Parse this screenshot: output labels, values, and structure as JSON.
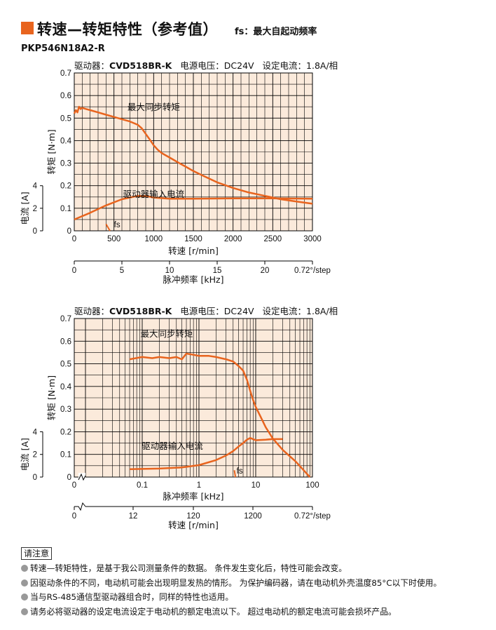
{
  "header": {
    "title": "转速—转矩特性（参考值）",
    "fs_note": "fs：最大自起动频率",
    "model": "PKP546N18A2-R"
  },
  "conditions": {
    "driver_label": "驱动器：",
    "driver": "CVD518BR-K",
    "voltage": "电源电压：DC24V",
    "current_label": "设定电流：",
    "current": "1.8A/相"
  },
  "colors": {
    "accent": "#e8641e",
    "curve": "#e8641e",
    "plot_bg": "#fbeadb",
    "grid": "#000000"
  },
  "chart_data": [
    {
      "type": "line",
      "x_scale": "linear",
      "xlabel": "转速 [r/min]",
      "xlim": [
        0,
        3000
      ],
      "x_ticks": [
        "0",
        "500",
        "1000",
        "1500",
        "2000",
        "2500",
        "3000"
      ],
      "ylabel": "转矩 [N·m]",
      "ylim": [
        0,
        0.7
      ],
      "y_ticks": [
        "0",
        "0.1",
        "0.2",
        "0.3",
        "0.4",
        "0.5",
        "0.6",
        "0.7"
      ],
      "current_label": "电流 [A]",
      "current_ticks": [
        "0",
        "2",
        "4"
      ],
      "secondary_xlabel": "脉冲频率 [kHz]",
      "secondary_ticks": [
        "0",
        "5",
        "10",
        "15",
        "20"
      ],
      "step_label": "0.72°/step",
      "fs_label": "fs",
      "grid": true,
      "series": [
        {
          "name": "最大同步转矩",
          "x": [
            0,
            20,
            40,
            60,
            80,
            100,
            150,
            200,
            300,
            400,
            500,
            600,
            700,
            800,
            850,
            900,
            950,
            1000,
            1050,
            1100,
            1200,
            1300,
            1400,
            1500,
            1600,
            1800,
            2000,
            2200,
            2400,
            2600,
            2800,
            3000
          ],
          "y": [
            0.52,
            0.535,
            0.525,
            0.55,
            0.54,
            0.545,
            0.54,
            0.535,
            0.525,
            0.515,
            0.505,
            0.495,
            0.485,
            0.47,
            0.455,
            0.43,
            0.405,
            0.38,
            0.36,
            0.345,
            0.325,
            0.305,
            0.285,
            0.265,
            0.248,
            0.215,
            0.19,
            0.17,
            0.155,
            0.14,
            0.13,
            0.12
          ]
        },
        {
          "name": "驱动器输入电流",
          "x": [
            0,
            200,
            400,
            600,
            800,
            900,
            1000,
            1200,
            1500,
            2000,
            2500,
            3000
          ],
          "y": [
            1.0,
            1.6,
            2.25,
            2.8,
            3.1,
            3.1,
            2.95,
            2.85,
            2.85,
            2.88,
            2.88,
            2.85
          ],
          "unit": "A"
        },
        {
          "name": "fs",
          "x": [
            400,
            450
          ],
          "y": [
            0.03,
            0.0
          ]
        }
      ]
    },
    {
      "type": "line",
      "x_scale": "log",
      "xlabel": "脉冲频率 [kHz]",
      "xlim": [
        0.01,
        100
      ],
      "x_ticks": [
        "0",
        "0.1",
        "1",
        "10",
        "100"
      ],
      "ylabel": "转矩 [N·m]",
      "ylim": [
        0,
        0.7
      ],
      "y_ticks": [
        "0",
        "0.1",
        "0.2",
        "0.3",
        "0.4",
        "0.5",
        "0.6",
        "0.7"
      ],
      "current_label": "电流 [A]",
      "current_ticks": [
        "0",
        "2",
        "4"
      ],
      "secondary_xlabel": "转速 [r/min]",
      "secondary_ticks": [
        "0",
        "12",
        "120",
        "1200"
      ],
      "step_label": "0.72°/step",
      "fs_label": "fs",
      "grid": true,
      "series": [
        {
          "name": "最大同步转矩",
          "x": [
            0.06,
            0.1,
            0.15,
            0.2,
            0.3,
            0.4,
            0.5,
            0.6,
            0.8,
            1,
            1.5,
            2,
            3,
            4,
            5,
            6,
            7,
            8,
            9,
            10,
            12,
            15,
            20,
            30,
            50,
            70,
            90
          ],
          "y": [
            0.52,
            0.53,
            0.525,
            0.53,
            0.525,
            0.53,
            0.52,
            0.545,
            0.54,
            0.535,
            0.535,
            0.53,
            0.52,
            0.51,
            0.49,
            0.47,
            0.43,
            0.38,
            0.34,
            0.31,
            0.27,
            0.22,
            0.17,
            0.12,
            0.07,
            0.03,
            0.0
          ]
        },
        {
          "name": "驱动器输入电流",
          "x": [
            0.06,
            0.1,
            0.2,
            0.5,
            1,
            2,
            3,
            4,
            5,
            6,
            7,
            8,
            10,
            15,
            20,
            30
          ],
          "y": [
            0.7,
            0.72,
            0.75,
            0.85,
            1.05,
            1.5,
            1.9,
            2.3,
            2.7,
            3.0,
            3.3,
            3.45,
            3.25,
            3.3,
            3.35,
            3.35
          ],
          "unit": "A"
        },
        {
          "name": "fs",
          "x": [
            4.2,
            4.4
          ],
          "y": [
            0.03,
            0.0
          ]
        }
      ]
    }
  ],
  "notes": {
    "title": "请注意",
    "items": [
      "转速—转矩特性，是基于我公司测量条件的数据。 条件发生变化后，特性可能会改变。",
      "因驱动条件的不同，电动机可能会出现明显发热的情形。 为保护编码器，请在电动机外壳温度85°C以下时使用。",
      "当与RS-485通信型驱动器组合时，同样的特性也适用。",
      "请务必将驱动器的设定电流设定于电动机的额定电流以下。 超过电动机的额定电流可能会损坏产品。"
    ]
  }
}
